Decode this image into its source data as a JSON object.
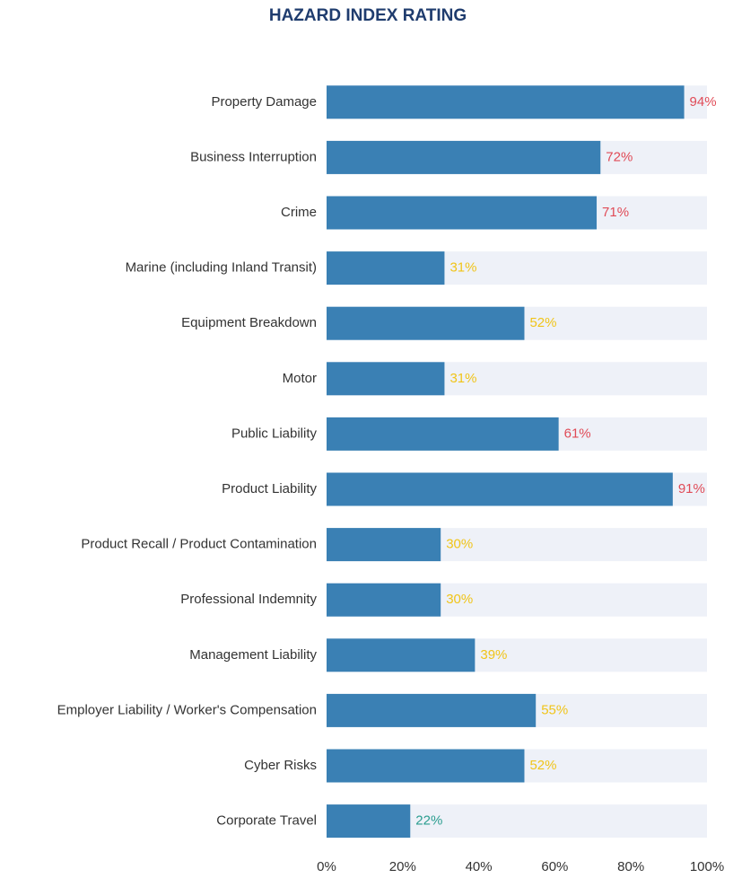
{
  "chart_data": {
    "type": "hbar",
    "title": "HAZARD INDEX RATING",
    "categories": [
      "Property Damage",
      "Business Interruption",
      "Crime",
      "Marine (including Inland Transit)",
      "Equipment Breakdown",
      "Motor",
      "Public Liability",
      "Product Liability",
      "Product Recall / Product Contamination",
      "Professional Indemnity",
      "Management Liability",
      "Employer Liability / Worker's Compensation",
      "Cyber Risks",
      "Corporate Travel"
    ],
    "values": [
      94,
      72,
      71,
      31,
      52,
      31,
      61,
      91,
      30,
      30,
      39,
      55,
      52,
      22
    ],
    "value_labels": [
      "94%",
      "72%",
      "71%",
      "31%",
      "52%",
      "31%",
      "61%",
      "91%",
      "30%",
      "30%",
      "39%",
      "55%",
      "52%",
      "22%"
    ],
    "label_colors": [
      "#e04b57",
      "#e04b57",
      "#e04b57",
      "#f0c419",
      "#f0c419",
      "#f0c419",
      "#e04b57",
      "#e04b57",
      "#f0c419",
      "#f0c419",
      "#f0c419",
      "#f0c419",
      "#f0c419",
      "#2a9d8f"
    ],
    "color": "#3a80b4",
    "track_color": "#eef1f8",
    "xlim": [
      0,
      100
    ],
    "xticks": [
      {
        "value": 0,
        "label": "0%"
      },
      {
        "value": 20,
        "label": "20%"
      },
      {
        "value": 40,
        "label": "40%"
      },
      {
        "value": 60,
        "label": "60%"
      },
      {
        "value": 80,
        "label": "80%"
      },
      {
        "value": 100,
        "label": "100%"
      }
    ]
  }
}
